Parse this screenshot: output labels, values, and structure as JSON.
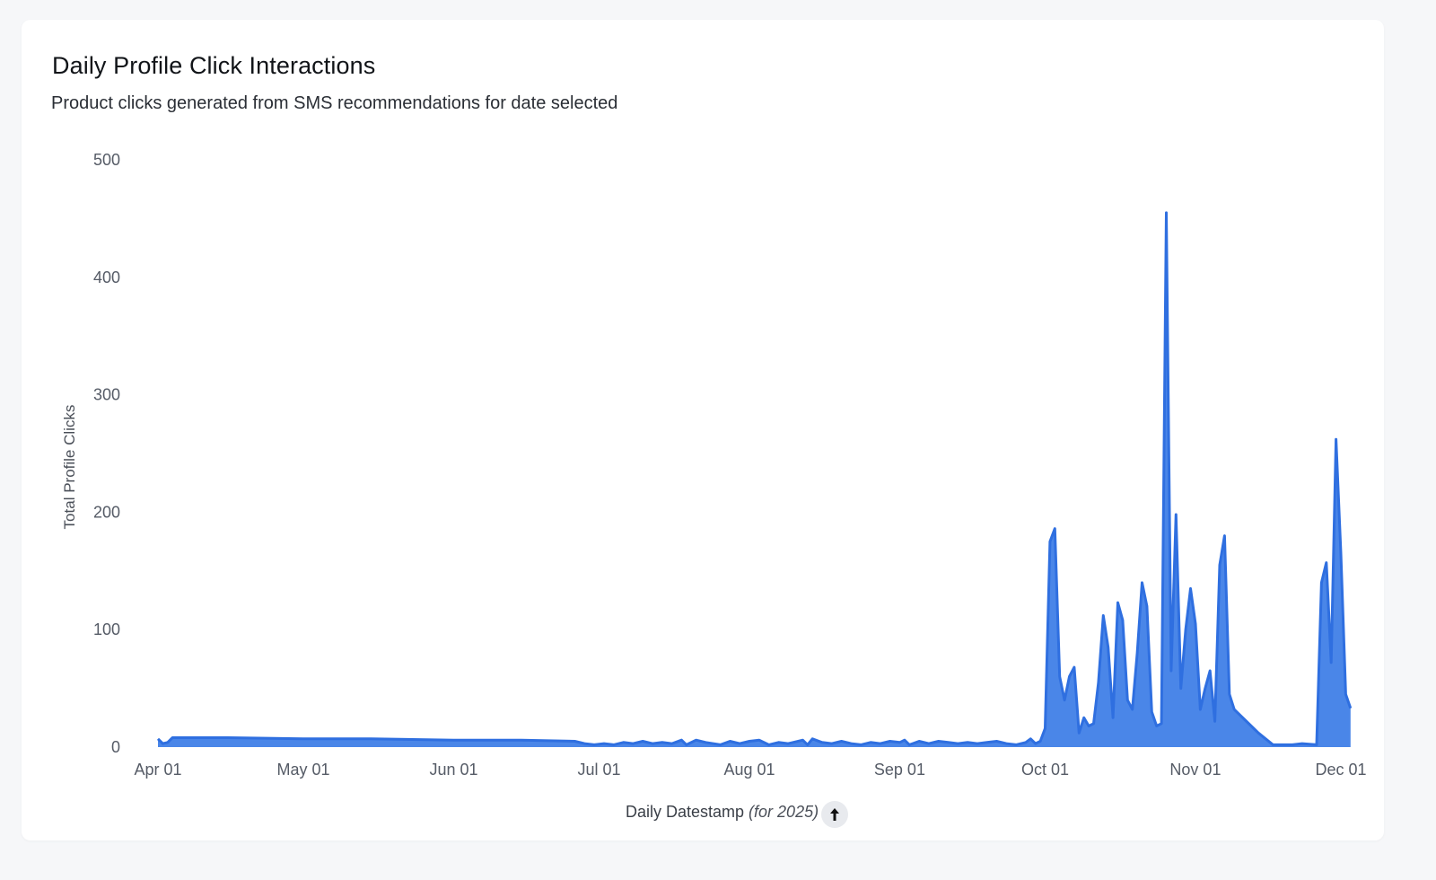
{
  "title": "Daily Profile Click Interactions",
  "subtitle": "Product clicks generated from SMS recommendations for date selected",
  "colors": {
    "area": "#4a86e8",
    "line": "#2f6fe0",
    "axis_text": "#555b66"
  },
  "chart_data": {
    "type": "area",
    "title": "Daily Profile Click Interactions",
    "subtitle": "Product clicks generated from SMS recommendations for date selected",
    "xlabel": "Daily Datestamp",
    "xlabel_note": "(for 2025)",
    "ylabel": "Total Profile Clicks",
    "ylim": [
      0,
      500
    ],
    "yticks": [
      0,
      100,
      200,
      300,
      400,
      500
    ],
    "xticks": [
      "Apr 01",
      "May 01",
      "Jun 01",
      "Jul 01",
      "Aug 01",
      "Sep 01",
      "Oct 01",
      "Nov 01",
      "Dec 01"
    ],
    "xtick_dates": [
      "2025-04-01",
      "2025-05-01",
      "2025-06-01",
      "2025-07-01",
      "2025-08-01",
      "2025-09-01",
      "2025-10-01",
      "2025-11-01",
      "2025-12-01"
    ],
    "grid": false,
    "x_range": [
      "2025-04-01",
      "2025-12-01"
    ],
    "points": [
      [
        "2025-04-01",
        7
      ],
      [
        "2025-04-02",
        3
      ],
      [
        "2025-04-03",
        4
      ],
      [
        "2025-04-04",
        8
      ],
      [
        "2025-04-15",
        8
      ],
      [
        "2025-05-01",
        7
      ],
      [
        "2025-05-15",
        7
      ],
      [
        "2025-06-01",
        6
      ],
      [
        "2025-06-15",
        6
      ],
      [
        "2025-06-26",
        5
      ],
      [
        "2025-06-28",
        3
      ],
      [
        "2025-06-30",
        2
      ],
      [
        "2025-07-02",
        3
      ],
      [
        "2025-07-04",
        2
      ],
      [
        "2025-07-06",
        4
      ],
      [
        "2025-07-08",
        3
      ],
      [
        "2025-07-10",
        5
      ],
      [
        "2025-07-12",
        3
      ],
      [
        "2025-07-14",
        4
      ],
      [
        "2025-07-16",
        3
      ],
      [
        "2025-07-18",
        6
      ],
      [
        "2025-07-19",
        2
      ],
      [
        "2025-07-21",
        6
      ],
      [
        "2025-07-23",
        4
      ],
      [
        "2025-07-26",
        2
      ],
      [
        "2025-07-28",
        5
      ],
      [
        "2025-07-30",
        3
      ],
      [
        "2025-08-01",
        5
      ],
      [
        "2025-08-03",
        6
      ],
      [
        "2025-08-05",
        2
      ],
      [
        "2025-08-07",
        4
      ],
      [
        "2025-08-09",
        3
      ],
      [
        "2025-08-10",
        4
      ],
      [
        "2025-08-12",
        6
      ],
      [
        "2025-08-13",
        2
      ],
      [
        "2025-08-14",
        7
      ],
      [
        "2025-08-16",
        4
      ],
      [
        "2025-08-18",
        3
      ],
      [
        "2025-08-20",
        5
      ],
      [
        "2025-08-22",
        3
      ],
      [
        "2025-08-24",
        2
      ],
      [
        "2025-08-26",
        4
      ],
      [
        "2025-08-28",
        3
      ],
      [
        "2025-08-30",
        5
      ],
      [
        "2025-09-01",
        4
      ],
      [
        "2025-09-02",
        6
      ],
      [
        "2025-09-03",
        2
      ],
      [
        "2025-09-05",
        5
      ],
      [
        "2025-09-07",
        3
      ],
      [
        "2025-09-09",
        5
      ],
      [
        "2025-09-11",
        4
      ],
      [
        "2025-09-13",
        3
      ],
      [
        "2025-09-15",
        4
      ],
      [
        "2025-09-17",
        3
      ],
      [
        "2025-09-19",
        4
      ],
      [
        "2025-09-21",
        5
      ],
      [
        "2025-09-23",
        3
      ],
      [
        "2025-09-25",
        2
      ],
      [
        "2025-09-27",
        4
      ],
      [
        "2025-09-28",
        7
      ],
      [
        "2025-09-29",
        3
      ],
      [
        "2025-09-30",
        5
      ],
      [
        "2025-10-01",
        16
      ],
      [
        "2025-10-02",
        175
      ],
      [
        "2025-10-03",
        186
      ],
      [
        "2025-10-04",
        60
      ],
      [
        "2025-10-05",
        40
      ],
      [
        "2025-10-06",
        60
      ],
      [
        "2025-10-07",
        68
      ],
      [
        "2025-10-08",
        12
      ],
      [
        "2025-10-09",
        25
      ],
      [
        "2025-10-10",
        18
      ],
      [
        "2025-10-11",
        20
      ],
      [
        "2025-10-12",
        55
      ],
      [
        "2025-10-13",
        112
      ],
      [
        "2025-10-14",
        85
      ],
      [
        "2025-10-15",
        25
      ],
      [
        "2025-10-16",
        123
      ],
      [
        "2025-10-17",
        108
      ],
      [
        "2025-10-18",
        40
      ],
      [
        "2025-10-19",
        32
      ],
      [
        "2025-10-20",
        80
      ],
      [
        "2025-10-21",
        140
      ],
      [
        "2025-10-22",
        120
      ],
      [
        "2025-10-23",
        30
      ],
      [
        "2025-10-24",
        18
      ],
      [
        "2025-10-25",
        20
      ],
      [
        "2025-10-26",
        455
      ],
      [
        "2025-10-27",
        65
      ],
      [
        "2025-10-28",
        198
      ],
      [
        "2025-10-29",
        50
      ],
      [
        "2025-10-30",
        100
      ],
      [
        "2025-10-31",
        135
      ],
      [
        "2025-11-01",
        105
      ],
      [
        "2025-11-02",
        32
      ],
      [
        "2025-11-03",
        50
      ],
      [
        "2025-11-04",
        65
      ],
      [
        "2025-11-05",
        22
      ],
      [
        "2025-11-06",
        155
      ],
      [
        "2025-11-07",
        180
      ],
      [
        "2025-11-08",
        45
      ],
      [
        "2025-11-09",
        32
      ],
      [
        "2025-11-14",
        12
      ],
      [
        "2025-11-17",
        2
      ],
      [
        "2025-11-21",
        2
      ],
      [
        "2025-11-23",
        3
      ],
      [
        "2025-11-26",
        2
      ],
      [
        "2025-11-27",
        140
      ],
      [
        "2025-11-28",
        157
      ],
      [
        "2025-11-29",
        72
      ],
      [
        "2025-11-30",
        262
      ],
      [
        "2025-12-01",
        165
      ],
      [
        "2025-12-02",
        45
      ],
      [
        "2025-12-03",
        33
      ]
    ]
  },
  "sort_icon": "arrow-up-icon"
}
